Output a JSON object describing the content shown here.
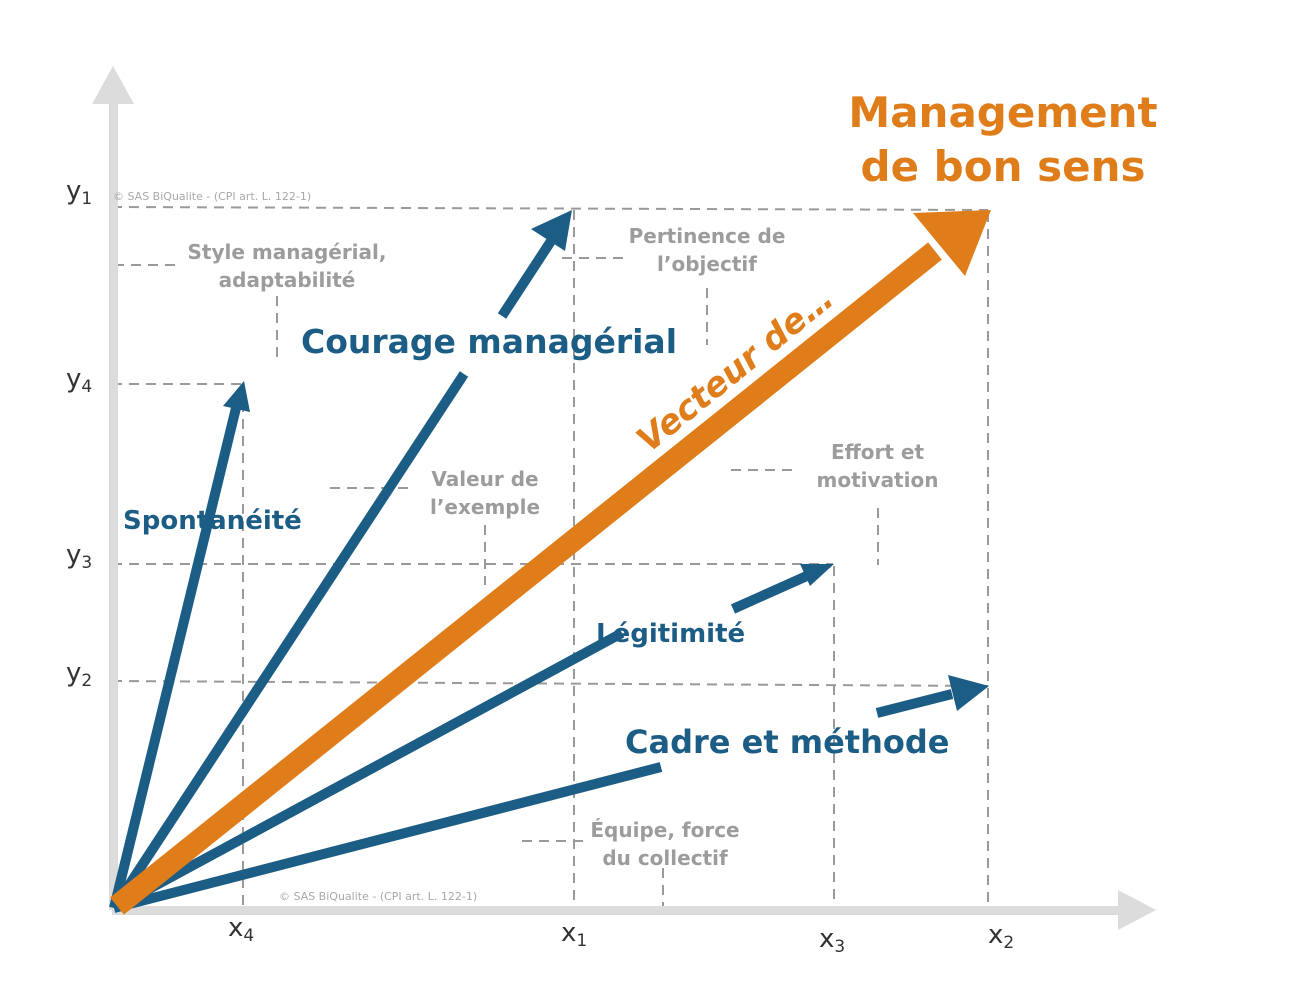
{
  "title": {
    "line1": "Management",
    "line2": "de bon sens"
  },
  "orange_label": "Vecteur de…",
  "copyright": "© SAS BiQualite - (CPI art. L. 122-1)",
  "y_axis_labels": {
    "y1": "y",
    "y1_sub": "1",
    "y4": "y",
    "y4_sub": "4",
    "y3": "y",
    "y3_sub": "3",
    "y2": "y",
    "y2_sub": "2"
  },
  "x_axis_labels": {
    "x4": "x",
    "x4_sub": "4",
    "x1": "x",
    "x1_sub": "1",
    "x3": "x",
    "x3_sub": "3",
    "x2": "x",
    "x2_sub": "2"
  },
  "vectors": {
    "courage": "Courage managérial",
    "spontaneite": "Spontanéité",
    "legitimite": "Légitimité",
    "cadre": "Cadre et méthode"
  },
  "notes": {
    "style": {
      "line1": "Style managérial,",
      "line2": "adaptabilité"
    },
    "pertinence": {
      "line1": "Pertinence de",
      "line2": "l’objectif"
    },
    "valeur": {
      "line1": "Valeur de",
      "line2": "l’exemple"
    },
    "effort": {
      "line1": "Effort et",
      "line2": "motivation"
    },
    "equipe": {
      "line1": "Équipe, force",
      "line2": "du collectif"
    }
  },
  "colors": {
    "blue": "#1c5d85",
    "orange": "#e07d1b",
    "axis": "#dcdcdc",
    "dash": "#9a9a9a",
    "note": "#9c9c9c"
  }
}
